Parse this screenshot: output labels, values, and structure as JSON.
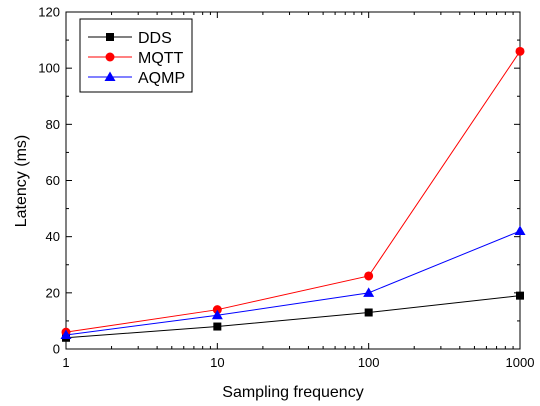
{
  "chart_data": {
    "type": "line",
    "title": "",
    "xlabel": "Sampling frequency",
    "ylabel": "Latency (ms)",
    "x_scale": "log",
    "x": [
      1,
      10,
      100,
      1000
    ],
    "x_tick_labels": [
      "1",
      "10",
      "100",
      "1000"
    ],
    "xlim": [
      1,
      1000
    ],
    "ylim": [
      0,
      120
    ],
    "y_ticks": [
      0,
      20,
      40,
      60,
      80,
      100,
      120
    ],
    "y_tick_labels": [
      "0",
      "20",
      "40",
      "60",
      "80",
      "100",
      "120"
    ],
    "grid": false,
    "legend_position": "top-left",
    "series": [
      {
        "name": "DDS",
        "values": [
          4,
          8,
          13,
          19
        ],
        "color": "#000000",
        "marker": "square"
      },
      {
        "name": "MQTT",
        "values": [
          6,
          14,
          26,
          106
        ],
        "color": "#ff0000",
        "marker": "circle"
      },
      {
        "name": "AQMP",
        "values": [
          5,
          12,
          20,
          42
        ],
        "color": "#0000ff",
        "marker": "triangle"
      }
    ]
  }
}
